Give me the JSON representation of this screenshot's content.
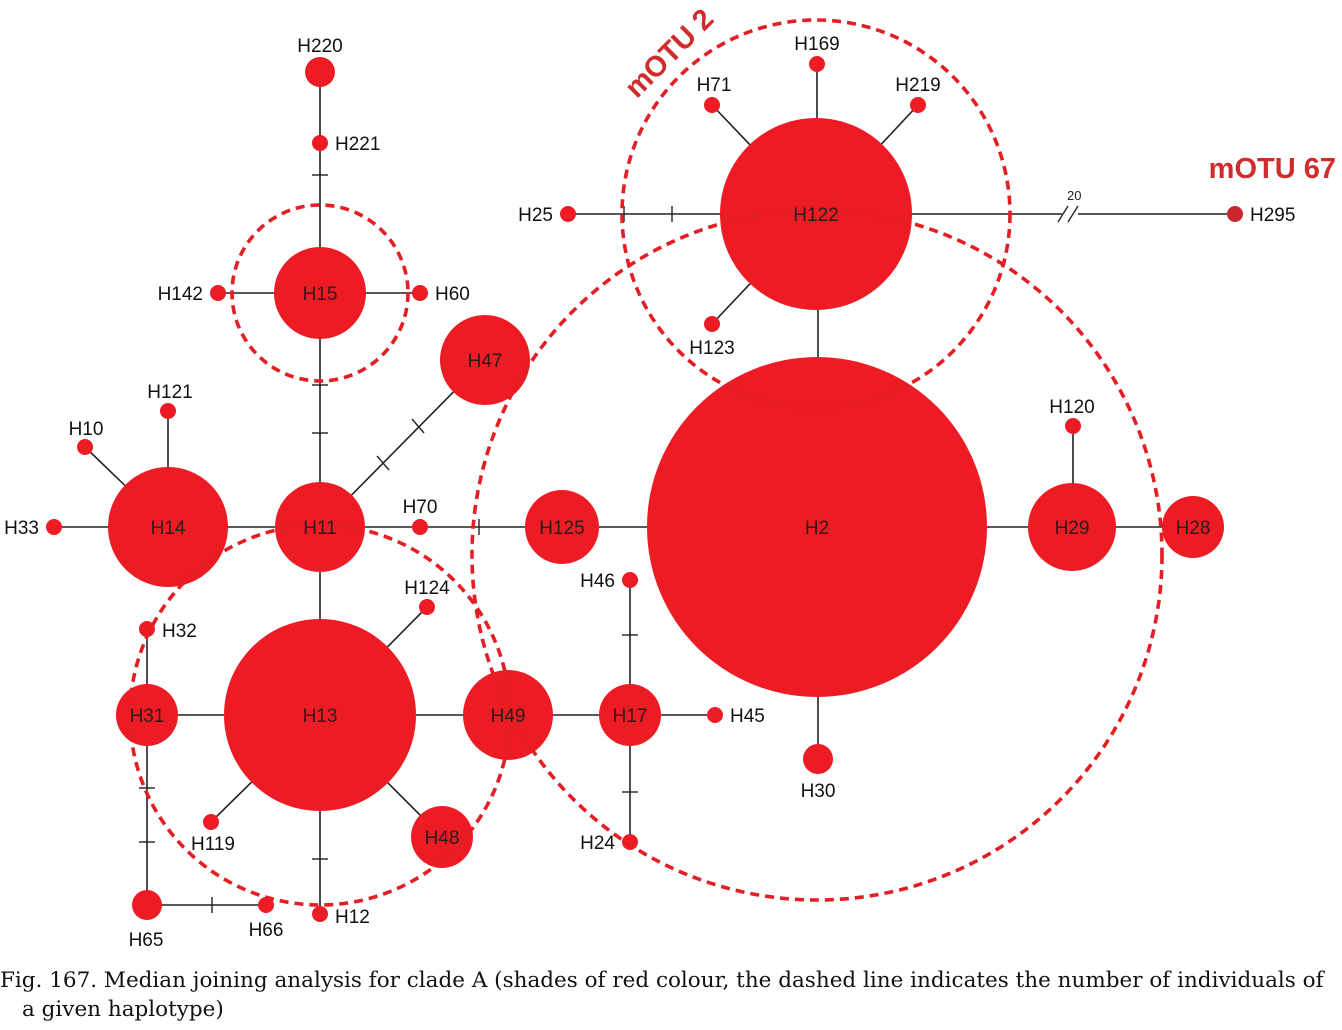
{
  "figure": {
    "caption": "Fig. 167. Median joining analysis for clade A (shades of red colour, the dashed line indicates the number of individuals of a given haplotype)"
  },
  "groups": {
    "motu2": "mOTU 2",
    "motu67": "mOTU 67"
  },
  "edge_labels": {
    "h122_h295": "20"
  },
  "colors": {
    "node": "#ed1c24",
    "node_distinct": "#c8252e",
    "ring": "#e31e24",
    "group_label": "#d02c2c"
  },
  "haplotypes": {
    "H2": "H2",
    "H10": "H10",
    "H11": "H11",
    "H12": "H12",
    "H13": "H13",
    "H14": "H14",
    "H15": "H15",
    "H17": "H17",
    "H24": "H24",
    "H25": "H25",
    "H28": "H28",
    "H29": "H29",
    "H30": "H30",
    "H31": "H31",
    "H32": "H32",
    "H33": "H33",
    "H45": "H45",
    "H46": "H46",
    "H47": "H47",
    "H48": "H48",
    "H49": "H49",
    "H60": "H60",
    "H65": "H65",
    "H66": "H66",
    "H70": "H70",
    "H71": "H71",
    "H119": "H119",
    "H120": "H120",
    "H121": "H121",
    "H122": "H122",
    "H123": "H123",
    "H124": "H124",
    "H125": "H125",
    "H142": "H142",
    "H169": "H169",
    "H219": "H219",
    "H220": "H220",
    "H221": "H221",
    "H295": "H295"
  }
}
